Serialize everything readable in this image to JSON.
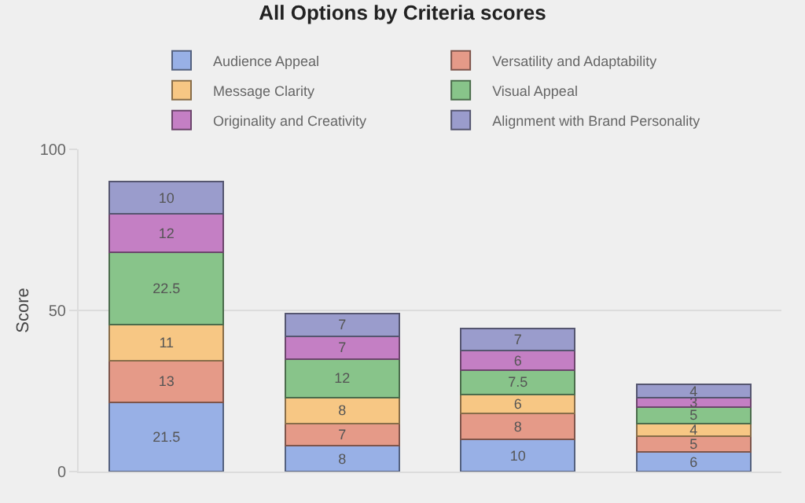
{
  "chart_data": {
    "type": "bar",
    "title": "All Options by Criteria scores",
    "ylabel": "Score",
    "categories": [
      null,
      null,
      null,
      null
    ],
    "series": [
      {
        "name": "Audience Appeal",
        "color": "#98b0e6",
        "values": [
          21.5,
          8,
          10,
          6
        ]
      },
      {
        "name": "Versatility and Adaptability",
        "color": "#e59a88",
        "values": [
          13,
          7,
          8,
          5
        ]
      },
      {
        "name": "Message Clarity",
        "color": "#f7c784",
        "values": [
          11,
          8,
          6,
          4
        ]
      },
      {
        "name": "Visual Appeal",
        "color": "#88c48a",
        "values": [
          22.5,
          12,
          7.5,
          5
        ]
      },
      {
        "name": "Originality and Creativity",
        "color": "#c47fc4",
        "values": [
          12,
          7,
          6,
          3
        ]
      },
      {
        "name": "Alignment with Brand Personality",
        "color": "#9a9ccc",
        "values": [
          10,
          7,
          7,
          4
        ]
      }
    ],
    "stacked": true,
    "ylim": [
      0,
      100
    ],
    "yticks": [
      0,
      50,
      100
    ],
    "grid": "y",
    "legend": "top",
    "data_labels": true
  }
}
